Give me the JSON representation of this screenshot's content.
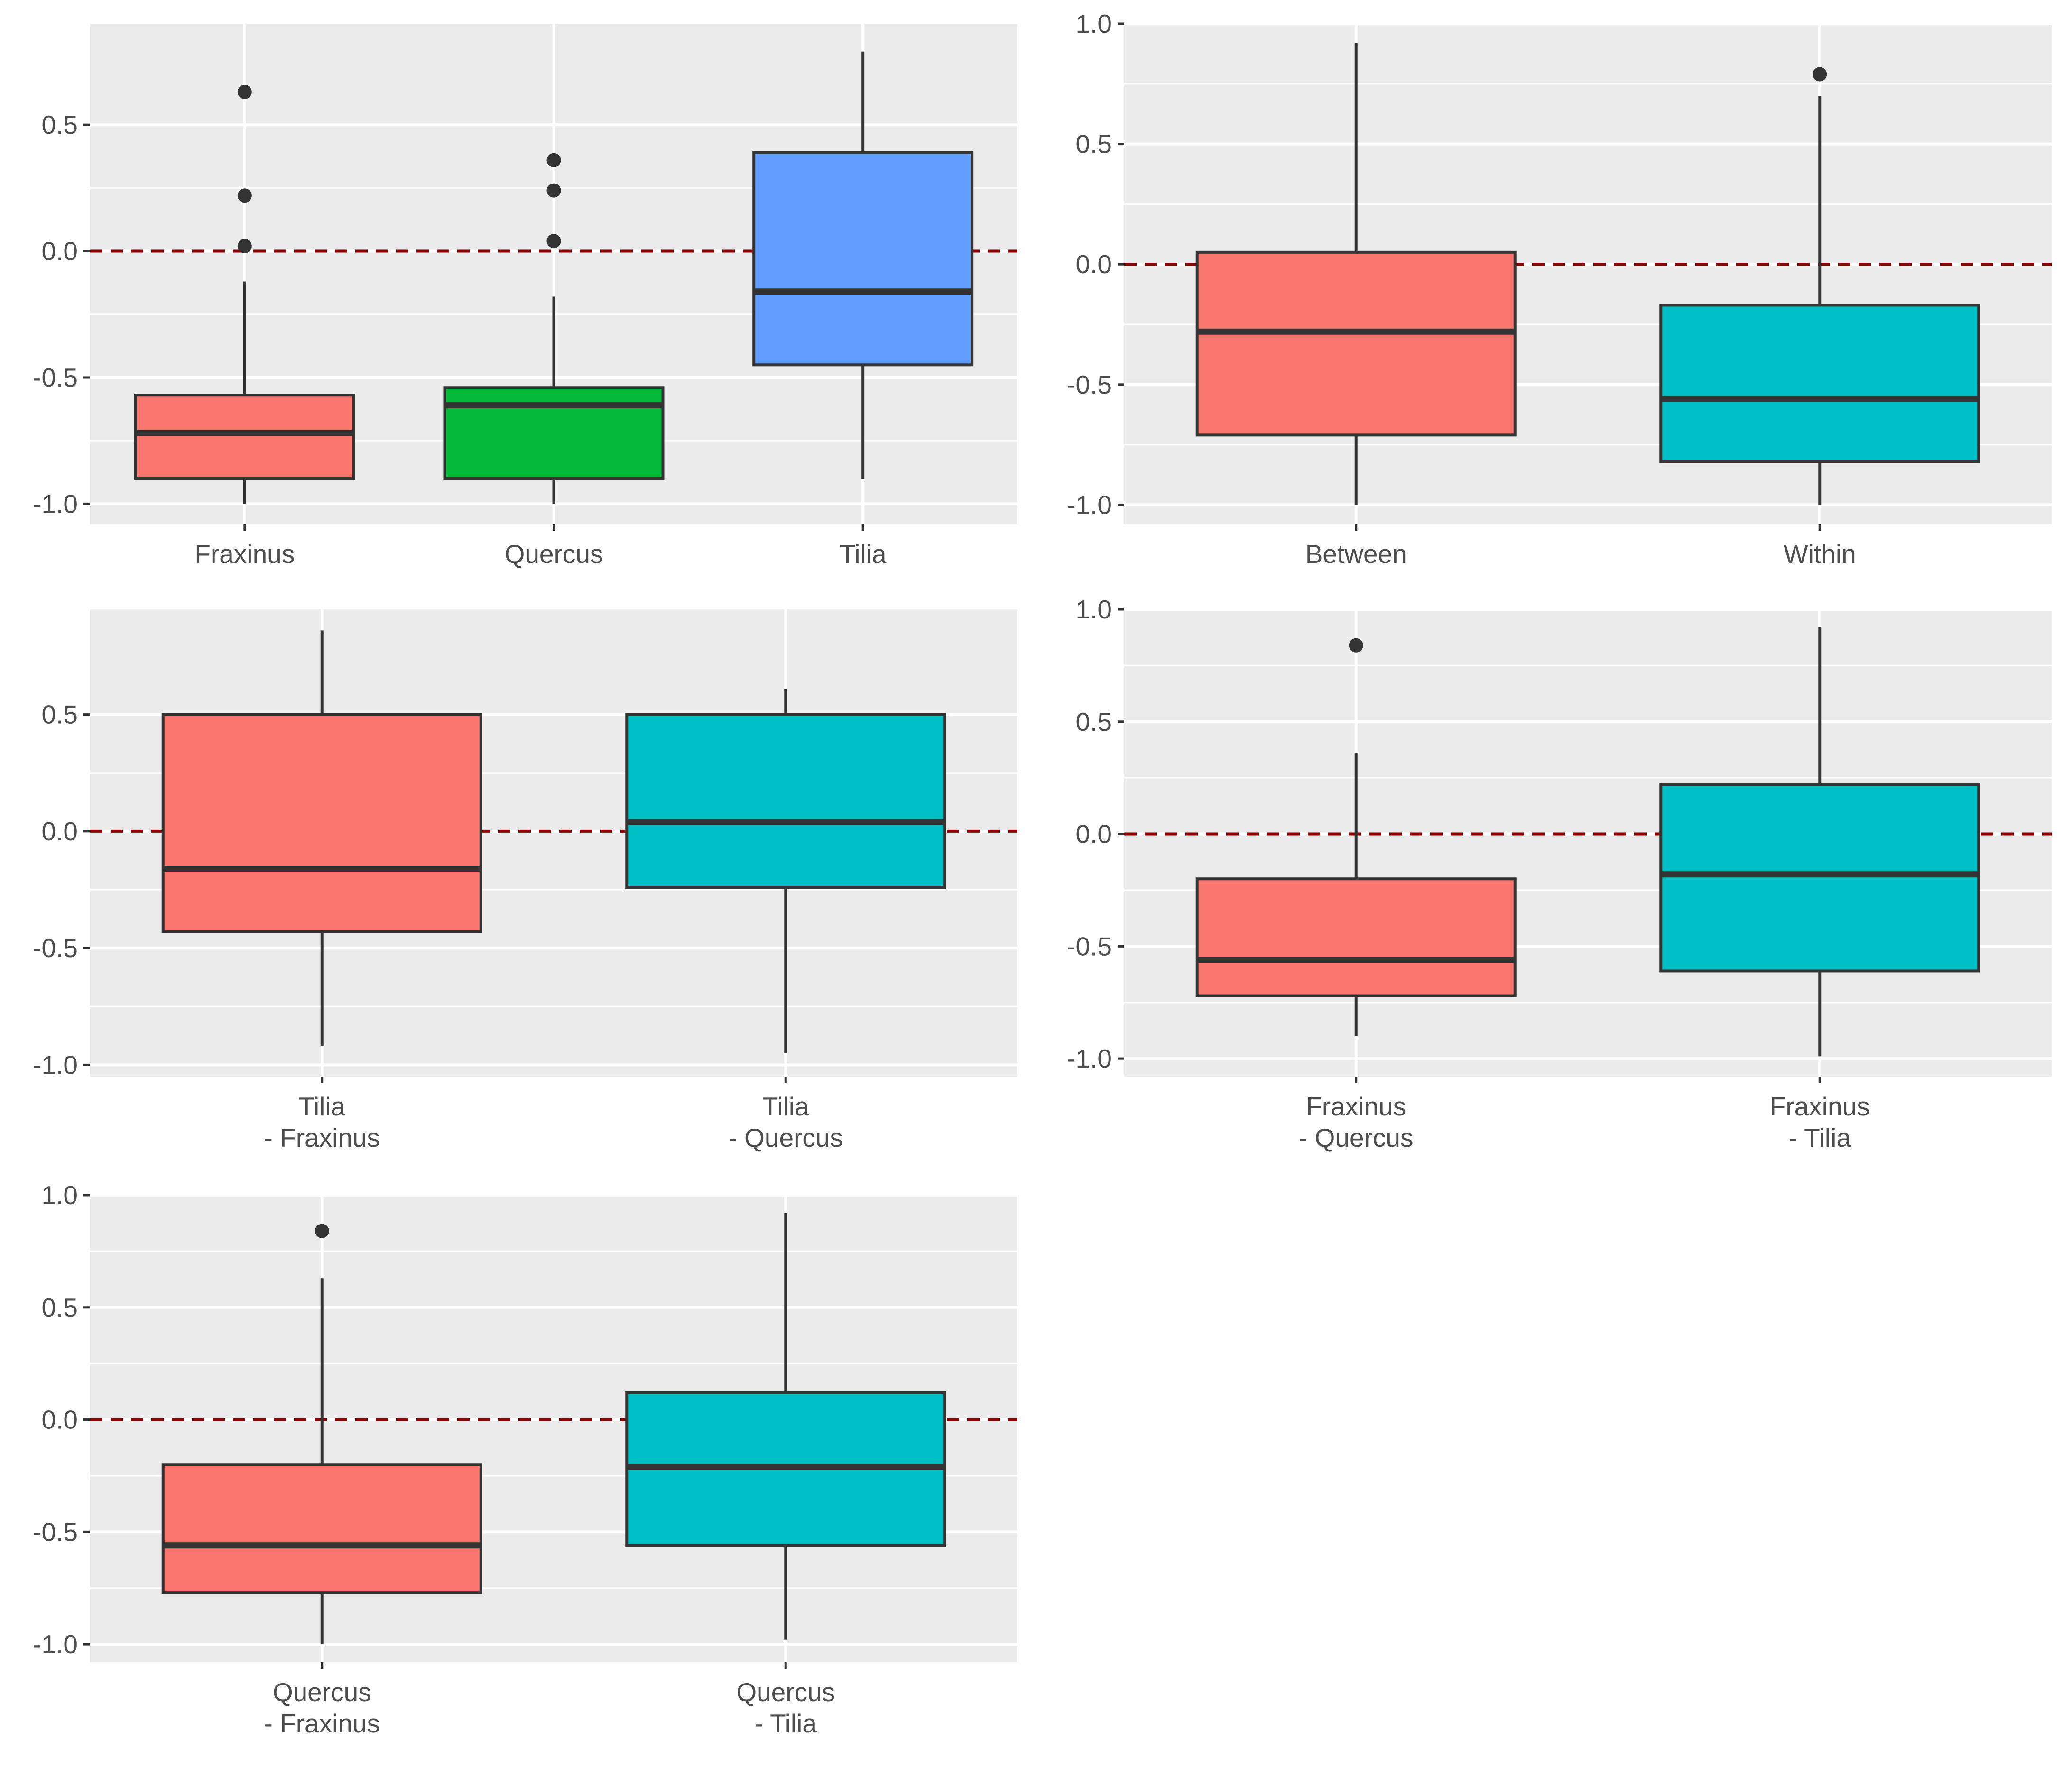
{
  "figure": {
    "panel_count": 5,
    "layout": "3 rows x 2 columns"
  },
  "colors": {
    "panel_background": "#EBEBEB",
    "gridline": "#FFFFFF",
    "box_outline": "#333333",
    "whisker": "#333333",
    "outlier": "#333333",
    "reference_line": "#8B0000",
    "tick_text": "#4D4D4D",
    "fill_red": "#F8766D",
    "fill_green": "#00BA38",
    "fill_blue": "#619CFF",
    "fill_cyan": "#00BFC4"
  },
  "chart_data": [
    {
      "type": "box",
      "title": "",
      "xlabel": "",
      "ylabel": "",
      "ylim": [
        -1.08,
        0.9
      ],
      "yticks": [
        -1.0,
        -0.5,
        0.0,
        0.5
      ],
      "ytick_labels": [
        "-1.0",
        "-0.5",
        "0.0",
        "0.5"
      ],
      "grid": true,
      "reference_line": {
        "y": 0,
        "style": "dashed"
      },
      "categories": [
        {
          "label": [
            "Fraxinus"
          ],
          "fill": "#F8766D",
          "whisker_low": -1.0,
          "q1": -0.9,
          "median": -0.72,
          "q3": -0.57,
          "whisker_high": -0.12,
          "outliers": [
            0.02,
            0.22,
            0.63
          ]
        },
        {
          "label": [
            "Quercus"
          ],
          "fill": "#00BA38",
          "whisker_low": -1.0,
          "q1": -0.9,
          "median": -0.61,
          "q3": -0.54,
          "whisker_high": -0.18,
          "outliers": [
            0.04,
            0.24,
            0.36
          ]
        },
        {
          "label": [
            "Tilia"
          ],
          "fill": "#619CFF",
          "whisker_low": -0.9,
          "q1": -0.45,
          "median": -0.16,
          "q3": 0.39,
          "whisker_high": 0.79,
          "outliers": []
        }
      ]
    },
    {
      "type": "box",
      "title": "",
      "xlabel": "",
      "ylabel": "",
      "ylim": [
        -1.08,
        1.0
      ],
      "yticks": [
        -1.0,
        -0.5,
        0.0,
        0.5,
        1.0
      ],
      "ytick_labels": [
        "-1.0",
        "-0.5",
        "0.0",
        "0.5",
        "1.0"
      ],
      "grid": true,
      "reference_line": {
        "y": 0,
        "style": "dashed"
      },
      "categories": [
        {
          "label": [
            "Between"
          ],
          "fill": "#F8766D",
          "whisker_low": -1.0,
          "q1": -0.71,
          "median": -0.28,
          "q3": 0.05,
          "whisker_high": 0.92,
          "outliers": []
        },
        {
          "label": [
            "Within"
          ],
          "fill": "#00BFC4",
          "whisker_low": -1.0,
          "q1": -0.82,
          "median": -0.56,
          "q3": -0.17,
          "whisker_high": 0.7,
          "outliers": [
            0.79
          ]
        }
      ]
    },
    {
      "type": "box",
      "title": "",
      "xlabel": "",
      "ylabel": "",
      "ylim": [
        -1.05,
        0.95
      ],
      "yticks": [
        -1.0,
        -0.5,
        0.0,
        0.5
      ],
      "ytick_labels": [
        "-1.0",
        "-0.5",
        "0.0",
        "0.5"
      ],
      "grid": true,
      "reference_line": {
        "y": 0,
        "style": "dashed"
      },
      "categories": [
        {
          "label": [
            "Tilia",
            "- Fraxinus"
          ],
          "fill": "#F8766D",
          "whisker_low": -0.92,
          "q1": -0.43,
          "median": -0.16,
          "q3": 0.5,
          "whisker_high": 0.86,
          "outliers": []
        },
        {
          "label": [
            "Tilia",
            "- Quercus"
          ],
          "fill": "#00BFC4",
          "whisker_low": -0.95,
          "q1": -0.24,
          "median": 0.04,
          "q3": 0.5,
          "whisker_high": 0.61,
          "outliers": []
        }
      ]
    },
    {
      "type": "box",
      "title": "",
      "xlabel": "",
      "ylabel": "",
      "ylim": [
        -1.08,
        1.0
      ],
      "yticks": [
        -1.0,
        -0.5,
        0.0,
        0.5,
        1.0
      ],
      "ytick_labels": [
        "-1.0",
        "-0.5",
        "0.0",
        "0.5",
        "1.0"
      ],
      "grid": true,
      "reference_line": {
        "y": 0,
        "style": "dashed"
      },
      "categories": [
        {
          "label": [
            "Fraxinus",
            "- Quercus"
          ],
          "fill": "#F8766D",
          "whisker_low": -0.9,
          "q1": -0.72,
          "median": -0.56,
          "q3": -0.2,
          "whisker_high": 0.36,
          "outliers": [
            0.84
          ]
        },
        {
          "label": [
            "Fraxinus",
            "- Tilia"
          ],
          "fill": "#00BFC4",
          "whisker_low": -0.99,
          "q1": -0.61,
          "median": -0.18,
          "q3": 0.22,
          "whisker_high": 0.92,
          "outliers": []
        }
      ]
    },
    {
      "type": "box",
      "title": "",
      "xlabel": "",
      "ylabel": "",
      "ylim": [
        -1.08,
        1.0
      ],
      "yticks": [
        -1.0,
        -0.5,
        0.0,
        0.5,
        1.0
      ],
      "ytick_labels": [
        "-1.0",
        "-0.5",
        "0.0",
        "0.5",
        "1.0"
      ],
      "grid": true,
      "reference_line": {
        "y": 0,
        "style": "dashed"
      },
      "categories": [
        {
          "label": [
            "Quercus",
            "- Fraxinus"
          ],
          "fill": "#F8766D",
          "whisker_low": -1.0,
          "q1": -0.77,
          "median": -0.56,
          "q3": -0.2,
          "whisker_high": 0.63,
          "outliers": [
            0.84
          ]
        },
        {
          "label": [
            "Quercus",
            "- Tilia"
          ],
          "fill": "#00BFC4",
          "whisker_low": -0.98,
          "q1": -0.56,
          "median": -0.21,
          "q3": 0.12,
          "whisker_high": 0.92,
          "outliers": []
        }
      ]
    }
  ]
}
